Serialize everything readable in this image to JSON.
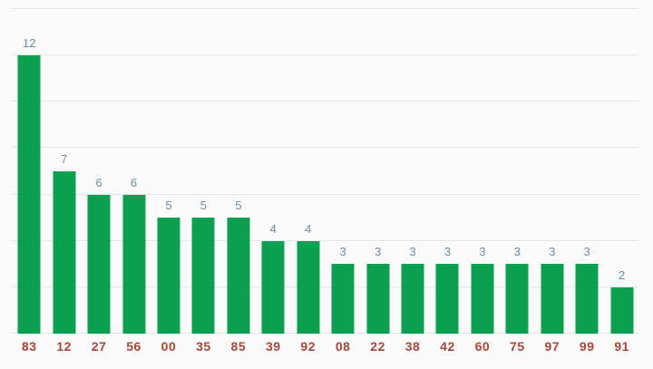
{
  "chart_data": {
    "type": "bar",
    "title": "",
    "xlabel": "",
    "ylabel": "",
    "categories": [
      "83",
      "12",
      "27",
      "56",
      "00",
      "35",
      "85",
      "39",
      "92",
      "08",
      "22",
      "38",
      "42",
      "60",
      "75",
      "97",
      "99",
      "91"
    ],
    "values": [
      12,
      7,
      6,
      6,
      5,
      5,
      5,
      4,
      4,
      3,
      3,
      3,
      3,
      3,
      3,
      3,
      3,
      2
    ],
    "ylim": [
      0,
      14
    ],
    "grid_step": 2,
    "grid_on": true,
    "y_tick_labels_visible": false,
    "value_labels_visible": true,
    "legend_position": "none",
    "colors": {
      "bar": "#0aa04f",
      "grid": "#e3e3e3",
      "value_label": "#6f8ba3",
      "category_label": "#a6473a",
      "background": "#fafafa"
    }
  }
}
